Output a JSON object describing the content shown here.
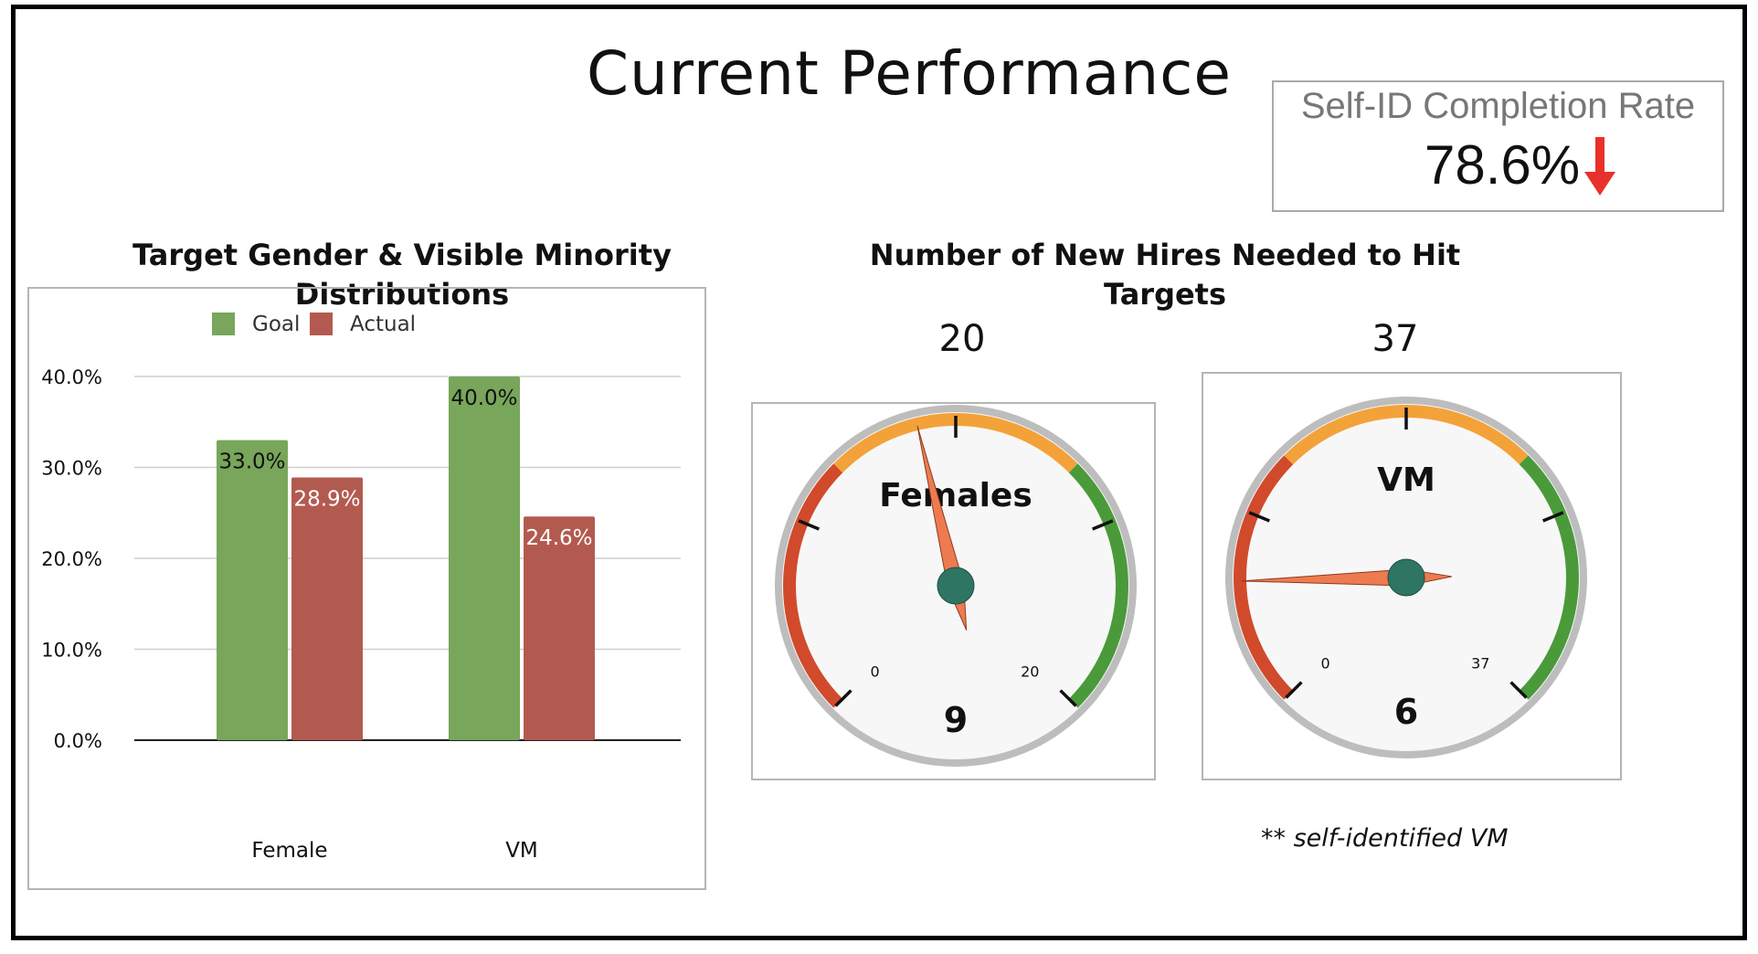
{
  "page_title": "Current Performance",
  "kpi": {
    "label": "Self-ID Completion Rate",
    "value": "78.6%",
    "trend": "down",
    "trend_color": "#e8312a"
  },
  "colors": {
    "goal": "#78a65a",
    "actual": "#b35a50",
    "gauge_red": "#d14a2b",
    "gauge_orange": "#f3a23a",
    "gauge_green": "#4a9a3a",
    "needle": "#ee7b4f",
    "hub": "#2f7564"
  },
  "bar_chart_title": "Target Gender & Visible Minority Distributions",
  "gauges_title_line1": "Number of New Hires Needed to Hit",
  "gauges_title_line2": "Targets",
  "footnote": "** self-identified VM",
  "chart_data": [
    {
      "type": "bar",
      "title": "Target Gender & Visible Minority Distributions",
      "categories": [
        "Female",
        "VM"
      ],
      "series": [
        {
          "name": "Goal",
          "values": [
            33.0,
            40.0
          ],
          "labels": [
            "33.0%",
            "40.0%"
          ]
        },
        {
          "name": "Actual",
          "values": [
            28.9,
            24.6
          ],
          "labels": [
            "28.9%",
            "24.6%"
          ]
        }
      ],
      "ylim": [
        0,
        40
      ],
      "yticks": [
        "0.0%",
        "10.0%",
        "20.0%",
        "30.0%",
        "40.0%"
      ],
      "ytick_values": [
        0,
        10,
        20,
        30,
        40
      ],
      "legend": "top",
      "grid": true
    },
    {
      "type": "gauge",
      "name": "Females",
      "min": 0,
      "max": 20,
      "min_label": "0",
      "max_label": "20",
      "target_label": "20",
      "value": 9,
      "value_label": "9"
    },
    {
      "type": "gauge",
      "name": "VM",
      "min": 0,
      "max": 37,
      "min_label": "0",
      "max_label": "37",
      "target_label": "37",
      "value": 6,
      "value_label": "6"
    }
  ]
}
